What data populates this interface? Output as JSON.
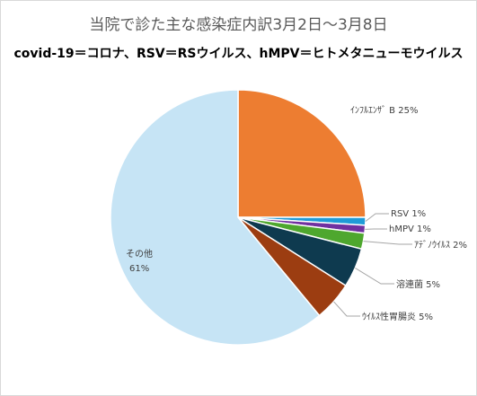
{
  "chart": {
    "title": "当院で診た主な感染症内訳3月2日～3月8日",
    "subtitle": "covid-19＝コロナ、RSV＝RSウイルス、hMPV＝ヒトメタニューモウイルス"
  },
  "chart_data": {
    "type": "pie",
    "title": "当院で診た主な感染症内訳3月2日～3月8日",
    "subtitle": "covid-19＝コロナ、RSV＝RSウイルス、hMPV＝ヒトメタニューモウイルス",
    "slices": [
      {
        "label": "ｲﾝﾌﾙｴﾝｻﾞ B",
        "value": 25,
        "percent_label": "25%",
        "color": "#ED7D31"
      },
      {
        "label": "RSV",
        "value": 1,
        "percent_label": "1%",
        "color": "#1F9BD7"
      },
      {
        "label": "hMPV",
        "value": 1,
        "percent_label": "1%",
        "color": "#7030A0"
      },
      {
        "label": "ｱﾃﾞﾉｳｲﾙｽ",
        "value": 2,
        "percent_label": "2%",
        "color": "#4EA72E"
      },
      {
        "label": "溶連菌",
        "value": 5,
        "percent_label": "5%",
        "color": "#0E3A4F"
      },
      {
        "label": "ｳｲﾙｽ性胃腸炎",
        "value": 5,
        "percent_label": "5%",
        "color": "#9C3D11"
      },
      {
        "label": "その他",
        "value": 61,
        "percent_label": "61%",
        "color": "#C6E4F5"
      }
    ],
    "legend": "none",
    "data_labels": "outside"
  }
}
